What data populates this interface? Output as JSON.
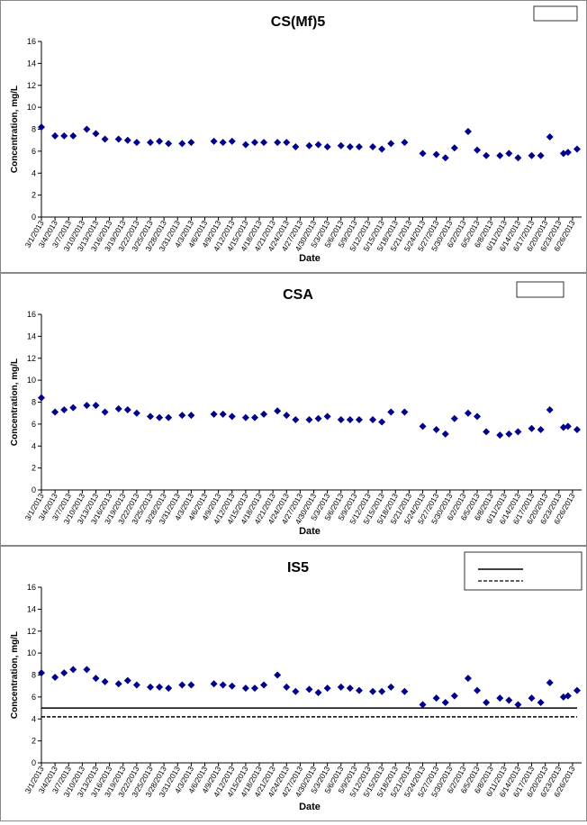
{
  "chart_data": [
    {
      "type": "scatter",
      "title": "CS(Mf)5",
      "xlabel": "Date",
      "ylabel": "Concentration, mg/L",
      "ylim": [
        0,
        16
      ],
      "yticks": [
        0,
        2,
        4,
        6,
        8,
        10,
        12,
        14,
        16
      ],
      "xlim": [
        "3/1/2013",
        "6/28/2013"
      ],
      "xticks": [
        "3/1/2013",
        "3/4/2013",
        "3/7/2013",
        "3/10/2013",
        "3/13/2013",
        "3/16/2013",
        "3/19/2013",
        "3/22/2013",
        "3/25/2013",
        "3/28/2013",
        "3/31/2013",
        "4/3/2013",
        "4/6/2013",
        "4/9/2013",
        "4/12/2013",
        "4/15/2013",
        "4/18/2013",
        "4/21/2013",
        "4/24/2013",
        "4/27/2013",
        "4/30/2013",
        "5/3/2013",
        "5/6/2013",
        "5/9/2013",
        "5/12/2013",
        "5/15/2013",
        "5/18/2013",
        "5/21/2013",
        "5/24/2013",
        "5/27/2013",
        "5/30/2013",
        "6/2/2013",
        "6/5/2013",
        "6/8/2013",
        "6/11/2013",
        "6/14/2013",
        "6/17/2013",
        "6/20/2013",
        "6/23/2013",
        "6/26/2013"
      ],
      "series": [
        {
          "color": "#00008b",
          "x": [
            "3/1/2013",
            "3/4/2013",
            "3/6/2013",
            "3/8/2013",
            "3/11/2013",
            "3/13/2013",
            "3/15/2013",
            "3/18/2013",
            "3/20/2013",
            "3/22/2013",
            "3/25/2013",
            "3/27/2013",
            "3/29/2013",
            "4/1/2013",
            "4/3/2013",
            "4/8/2013",
            "4/10/2013",
            "4/12/2013",
            "4/15/2013",
            "4/17/2013",
            "4/19/2013",
            "4/22/2013",
            "4/24/2013",
            "4/26/2013",
            "4/29/2013",
            "5/1/2013",
            "5/3/2013",
            "5/6/2013",
            "5/8/2013",
            "5/10/2013",
            "5/13/2013",
            "5/15/2013",
            "5/17/2013",
            "5/20/2013",
            "5/24/2013",
            "5/27/2013",
            "5/29/2013",
            "5/31/2013",
            "6/3/2013",
            "6/5/2013",
            "6/7/2013",
            "6/10/2013",
            "6/12/2013",
            "6/14/2013",
            "6/17/2013",
            "6/19/2013",
            "6/21/2013",
            "6/24/2013",
            "6/25/2013",
            "6/27/2013"
          ],
          "values": [
            8.2,
            7.4,
            7.4,
            7.4,
            8.0,
            7.6,
            7.1,
            7.1,
            7.0,
            6.8,
            6.8,
            6.9,
            6.7,
            6.7,
            6.8,
            6.9,
            6.8,
            6.9,
            6.6,
            6.8,
            6.8,
            6.8,
            6.8,
            6.4,
            6.5,
            6.6,
            6.4,
            6.5,
            6.4,
            6.4,
            6.4,
            6.2,
            6.7,
            6.8,
            5.8,
            5.7,
            5.4,
            6.3,
            7.8,
            6.1,
            5.6,
            5.6,
            5.8,
            5.4,
            5.6,
            5.6,
            7.3,
            5.8,
            5.9,
            6.2
          ]
        }
      ]
    },
    {
      "type": "scatter",
      "title": "CSA",
      "xlabel": "Date",
      "ylabel": "Concentration, mg/L",
      "ylim": [
        0,
        16
      ],
      "yticks": [
        0,
        2,
        4,
        6,
        8,
        10,
        12,
        14,
        16
      ],
      "xlim": [
        "3/1/2013",
        "6/28/2013"
      ],
      "xticks": [
        "3/1/2013",
        "3/4/2013",
        "3/7/2013",
        "3/10/2013",
        "3/13/2013",
        "3/16/2013",
        "3/19/2013",
        "3/22/2013",
        "3/25/2013",
        "3/28/2013",
        "3/31/2013",
        "4/3/2013",
        "4/6/2013",
        "4/9/2013",
        "4/12/2013",
        "4/15/2013",
        "4/18/2013",
        "4/21/2013",
        "4/24/2013",
        "4/27/2013",
        "4/30/2013",
        "5/3/2013",
        "5/6/2013",
        "5/9/2013",
        "5/12/2013",
        "5/15/2013",
        "5/18/2013",
        "5/21/2013",
        "5/24/2013",
        "5/27/2013",
        "5/30/2013",
        "6/2/2013",
        "6/5/2013",
        "6/8/2013",
        "6/11/2013",
        "6/14/2013",
        "6/17/2013",
        "6/20/2013",
        "6/23/2013",
        "6/26/2013"
      ],
      "series": [
        {
          "color": "#00008b",
          "x": [
            "3/1/2013",
            "3/4/2013",
            "3/6/2013",
            "3/8/2013",
            "3/11/2013",
            "3/13/2013",
            "3/15/2013",
            "3/18/2013",
            "3/20/2013",
            "3/22/2013",
            "3/25/2013",
            "3/27/2013",
            "3/29/2013",
            "4/1/2013",
            "4/3/2013",
            "4/8/2013",
            "4/10/2013",
            "4/12/2013",
            "4/15/2013",
            "4/17/2013",
            "4/19/2013",
            "4/22/2013",
            "4/24/2013",
            "4/26/2013",
            "4/29/2013",
            "5/1/2013",
            "5/3/2013",
            "5/6/2013",
            "5/8/2013",
            "5/10/2013",
            "5/13/2013",
            "5/15/2013",
            "5/17/2013",
            "5/20/2013",
            "5/24/2013",
            "5/27/2013",
            "5/29/2013",
            "5/31/2013",
            "6/3/2013",
            "6/5/2013",
            "6/7/2013",
            "6/10/2013",
            "6/12/2013",
            "6/14/2013",
            "6/17/2013",
            "6/19/2013",
            "6/21/2013",
            "6/24/2013",
            "6/25/2013",
            "6/27/2013"
          ],
          "values": [
            8.4,
            7.1,
            7.3,
            7.5,
            7.7,
            7.7,
            7.1,
            7.4,
            7.3,
            7.0,
            6.7,
            6.6,
            6.6,
            6.8,
            6.8,
            6.9,
            6.9,
            6.7,
            6.6,
            6.6,
            6.9,
            7.2,
            6.8,
            6.4,
            6.4,
            6.5,
            6.7,
            6.4,
            6.4,
            6.4,
            6.4,
            6.2,
            7.1,
            7.1,
            5.8,
            5.5,
            5.1,
            6.5,
            7.0,
            6.7,
            5.3,
            5.0,
            5.1,
            5.3,
            5.6,
            5.5,
            7.3,
            5.7,
            5.8,
            5.5
          ]
        }
      ]
    },
    {
      "type": "scatter",
      "title": "IS5",
      "xlabel": "Date",
      "ylabel": "Concentration, mg/L",
      "ylim": [
        0,
        16
      ],
      "yticks": [
        0,
        2,
        4,
        6,
        8,
        10,
        12,
        14,
        16
      ],
      "xlim": [
        "3/1/2013",
        "6/28/2013"
      ],
      "xticks": [
        "3/1/2013",
        "3/4/2013",
        "3/7/2013",
        "3/10/2013",
        "3/13/2013",
        "3/16/2013",
        "3/19/2013",
        "3/22/2013",
        "3/25/2013",
        "3/28/2013",
        "3/31/2013",
        "4/3/2013",
        "4/6/2013",
        "4/9/2013",
        "4/12/2013",
        "4/15/2013",
        "4/18/2013",
        "4/21/2013",
        "4/24/2013",
        "4/27/2013",
        "4/30/2013",
        "5/3/2013",
        "5/6/2013",
        "5/9/2013",
        "5/12/2013",
        "5/15/2013",
        "5/18/2013",
        "5/21/2013",
        "5/24/2013",
        "5/27/2013",
        "5/30/2013",
        "6/2/2013",
        "6/5/2013",
        "6/8/2013",
        "6/11/2013",
        "6/14/2013",
        "6/17/2013",
        "6/20/2013",
        "6/23/2013",
        "6/26/2013"
      ],
      "series": [
        {
          "color": "#00008b",
          "x": [
            "3/1/2013",
            "3/4/2013",
            "3/6/2013",
            "3/8/2013",
            "3/11/2013",
            "3/13/2013",
            "3/15/2013",
            "3/18/2013",
            "3/20/2013",
            "3/22/2013",
            "3/25/2013",
            "3/27/2013",
            "3/29/2013",
            "4/1/2013",
            "4/3/2013",
            "4/8/2013",
            "4/10/2013",
            "4/12/2013",
            "4/15/2013",
            "4/17/2013",
            "4/19/2013",
            "4/22/2013",
            "4/24/2013",
            "4/26/2013",
            "4/29/2013",
            "5/1/2013",
            "5/3/2013",
            "5/6/2013",
            "5/8/2013",
            "5/10/2013",
            "5/13/2013",
            "5/15/2013",
            "5/17/2013",
            "5/20/2013",
            "5/24/2013",
            "5/27/2013",
            "5/29/2013",
            "5/31/2013",
            "6/3/2013",
            "6/5/2013",
            "6/7/2013",
            "6/10/2013",
            "6/12/2013",
            "6/14/2013",
            "6/17/2013",
            "6/19/2013",
            "6/21/2013",
            "6/24/2013",
            "6/25/2013",
            "6/27/2013"
          ],
          "values": [
            8.2,
            7.8,
            8.2,
            8.5,
            8.5,
            7.7,
            7.4,
            7.2,
            7.5,
            7.1,
            6.9,
            6.9,
            6.8,
            7.1,
            7.1,
            7.2,
            7.1,
            7.0,
            6.8,
            6.8,
            7.1,
            8.0,
            6.9,
            6.5,
            6.7,
            6.4,
            6.8,
            6.9,
            6.8,
            6.6,
            6.5,
            6.5,
            6.9,
            6.5,
            5.3,
            5.9,
            5.5,
            6.1,
            7.7,
            6.6,
            5.5,
            5.9,
            5.7,
            5.3,
            5.9,
            5.5,
            7.3,
            6.0,
            6.1,
            6.6
          ]
        }
      ],
      "hlines": [
        {
          "value": 5.0,
          "style": "solid"
        },
        {
          "value": 4.2,
          "style": "dashed"
        }
      ]
    }
  ]
}
